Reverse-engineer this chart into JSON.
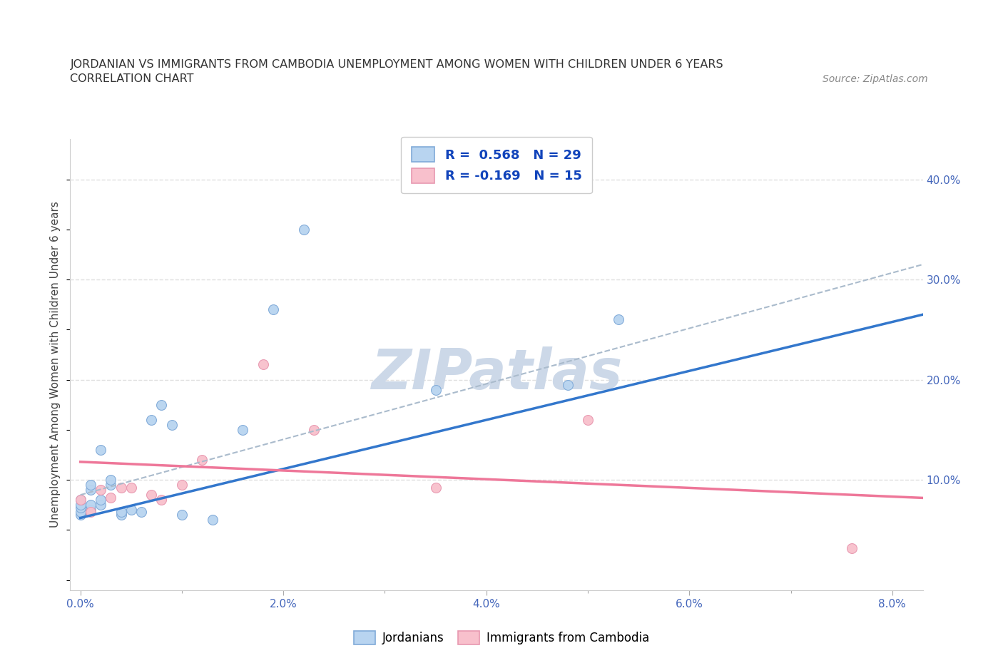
{
  "title_line1": "JORDANIAN VS IMMIGRANTS FROM CAMBODIA UNEMPLOYMENT AMONG WOMEN WITH CHILDREN UNDER 6 YEARS",
  "title_line2": "CORRELATION CHART",
  "source": "Source: ZipAtlas.com",
  "xlim": [
    -0.001,
    0.083
  ],
  "ylim": [
    -0.01,
    0.44
  ],
  "xlabel_ticks": [
    0.0,
    0.02,
    0.04,
    0.06,
    0.08
  ],
  "xlabel_labels": [
    "0.0%",
    "2.0%",
    "4.0%",
    "6.0%",
    "8.0%"
  ],
  "xlabel_minor_ticks": [
    0.01,
    0.03,
    0.05,
    0.07
  ],
  "ylabel_ticks": [
    0.0,
    0.1,
    0.2,
    0.3,
    0.4
  ],
  "ylabel_labels": [
    "",
    "10.0%",
    "20.0%",
    "30.0%",
    "40.0%"
  ],
  "blue_color": "#b8d4f0",
  "blue_edge_color": "#80aad8",
  "pink_color": "#f8c0cc",
  "pink_edge_color": "#e898b0",
  "trend_blue": "#3377cc",
  "trend_pink": "#ee7799",
  "trend_dash_color": "#aabbcc",
  "R_blue": 0.568,
  "N_blue": 29,
  "R_pink": -0.169,
  "N_pink": 15,
  "watermark": "ZIPatlas",
  "watermark_color": "#ccd8e8",
  "jordanians_x": [
    0.0,
    0.0,
    0.0,
    0.0,
    0.0,
    0.001,
    0.001,
    0.001,
    0.001,
    0.002,
    0.002,
    0.002,
    0.003,
    0.003,
    0.004,
    0.004,
    0.005,
    0.006,
    0.007,
    0.008,
    0.009,
    0.01,
    0.013,
    0.016,
    0.019,
    0.022,
    0.035,
    0.048,
    0.053
  ],
  "jordanians_y": [
    0.065,
    0.068,
    0.072,
    0.075,
    0.08,
    0.07,
    0.075,
    0.09,
    0.095,
    0.075,
    0.08,
    0.13,
    0.095,
    0.1,
    0.065,
    0.068,
    0.07,
    0.068,
    0.16,
    0.175,
    0.155,
    0.065,
    0.06,
    0.15,
    0.27,
    0.35,
    0.19,
    0.195,
    0.26
  ],
  "cambodia_x": [
    0.0,
    0.001,
    0.002,
    0.003,
    0.004,
    0.005,
    0.007,
    0.008,
    0.01,
    0.012,
    0.018,
    0.023,
    0.035,
    0.05,
    0.076
  ],
  "cambodia_y": [
    0.08,
    0.068,
    0.09,
    0.082,
    0.092,
    0.092,
    0.085,
    0.08,
    0.095,
    0.12,
    0.215,
    0.15,
    0.092,
    0.16,
    0.032
  ],
  "trend_blue_x0": 0.0,
  "trend_blue_y0": 0.062,
  "trend_blue_x1": 0.083,
  "trend_blue_y1": 0.265,
  "trend_dash_x0": 0.0,
  "trend_dash_y0": 0.085,
  "trend_dash_x1": 0.083,
  "trend_dash_y1": 0.315,
  "trend_pink_x0": 0.0,
  "trend_pink_y0": 0.118,
  "trend_pink_x1": 0.083,
  "trend_pink_y1": 0.082,
  "marker_size": 100,
  "background_color": "#ffffff",
  "grid_color": "#e0e0e0",
  "grid_style": "--"
}
